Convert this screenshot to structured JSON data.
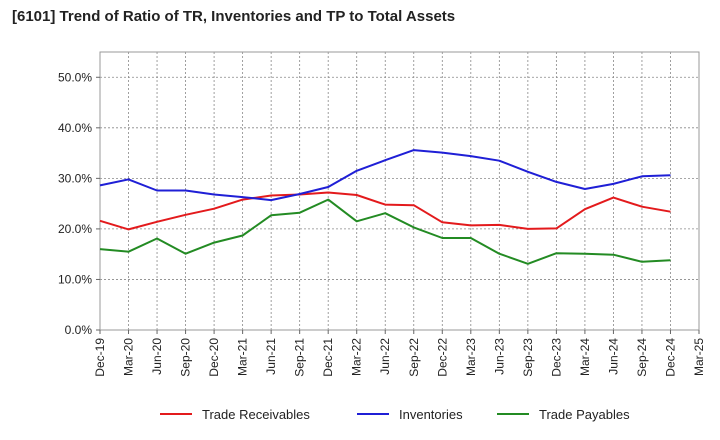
{
  "chart_data": {
    "type": "line",
    "title": "[6101]  Trend of Ratio of TR, Inventories and TP to Total Assets",
    "xlabel": "",
    "ylabel": "",
    "x_tick_labels": [
      "Dec-19",
      "Mar-20",
      "Jun-20",
      "Sep-20",
      "Dec-20",
      "Mar-21",
      "Jun-21",
      "Sep-21",
      "Dec-21",
      "Mar-22",
      "Jun-22",
      "Sep-22",
      "Dec-22",
      "Mar-23",
      "Jun-23",
      "Sep-23",
      "Dec-23",
      "Mar-24",
      "Jun-24",
      "Sep-24",
      "Dec-24",
      "Mar-25"
    ],
    "categories": [
      "Dec-19",
      "Mar-20",
      "Jun-20",
      "Sep-20",
      "Dec-20",
      "Mar-21",
      "Jun-21",
      "Sep-21",
      "Dec-21",
      "Mar-22",
      "Jun-22",
      "Sep-22",
      "Dec-22",
      "Mar-23",
      "Jun-23",
      "Sep-23",
      "Dec-23",
      "Mar-24",
      "Jun-24",
      "Sep-24",
      "Dec-24"
    ],
    "ylim": [
      0,
      55
    ],
    "y_ticks": [
      0,
      10,
      20,
      30,
      40,
      50
    ],
    "y_tick_labels": [
      "0.0%",
      "10.0%",
      "20.0%",
      "30.0%",
      "40.0%",
      "50.0%"
    ],
    "grid": true,
    "legend_position": "bottom",
    "series": [
      {
        "name": "Trade Receivables",
        "color": "#e31a1c",
        "values": [
          21.6,
          19.9,
          21.4,
          22.8,
          24.0,
          25.8,
          26.6,
          26.8,
          27.2,
          26.7,
          24.8,
          24.7,
          21.3,
          20.7,
          20.8,
          20.0,
          20.1,
          23.9,
          26.2,
          24.4,
          23.4
        ]
      },
      {
        "name": "Inventories",
        "color": "#1f1fd6",
        "values": [
          28.6,
          29.8,
          27.6,
          27.6,
          26.8,
          26.3,
          25.7,
          26.9,
          28.3,
          31.5,
          33.6,
          35.6,
          35.1,
          34.4,
          33.5,
          31.3,
          29.3,
          27.9,
          28.9,
          30.4,
          30.6
        ]
      },
      {
        "name": "Trade Payables",
        "color": "#238b23",
        "values": [
          16.0,
          15.5,
          18.1,
          15.1,
          17.3,
          18.7,
          22.7,
          23.2,
          25.8,
          21.5,
          23.1,
          20.3,
          18.2,
          18.2,
          15.1,
          13.1,
          15.2,
          15.1,
          14.9,
          13.5,
          13.8
        ]
      }
    ]
  }
}
